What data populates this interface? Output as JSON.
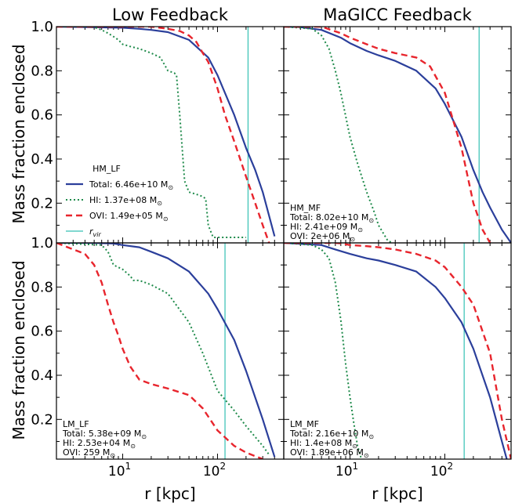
{
  "figure": {
    "col_titles": [
      "Low Feedback",
      "MaGICC Feedback"
    ],
    "ylabel": "Mass fraction enclosed",
    "xlabel": "r [kpc]"
  },
  "chart_data": {
    "type": "line",
    "x_scale": "log",
    "xlim": [
      2,
      500
    ],
    "ylim": [
      0.02,
      1.0
    ],
    "y_ticks": [
      "0.2",
      "0.4",
      "0.6",
      "0.8",
      "1.0"
    ],
    "x_ticks": [
      {
        "base": "10",
        "exp": "1"
      },
      {
        "base": "10",
        "exp": "2"
      }
    ],
    "colors": {
      "total": "#2b3f9b",
      "hi": "#1e8a4a",
      "ovi": "#e8252d",
      "rvir": "#35c1b4"
    },
    "panels": [
      {
        "id": "HM_LF",
        "rvir": 210,
        "legend_layout": "full",
        "legend": {
          "title": "HM_LF",
          "entries": [
            {
              "key": "total",
              "label": "Total: 6.46e+10 M",
              "sub": "⊙"
            },
            {
              "key": "hi",
              "label": "HI: 1.37e+08 M",
              "sub": "⊙"
            },
            {
              "key": "ovi",
              "label": "OVI: 1.49e+05 M",
              "sub": "⊙"
            },
            {
              "key": "rvir",
              "label": "r",
              "sub": "vir"
            }
          ]
        },
        "series": [
          {
            "key": "total",
            "x": [
              2,
              10,
              15,
              20,
              30,
              50,
              80,
              100,
              150,
              200,
              250,
              300,
              400
            ],
            "y": [
              1.0,
              0.995,
              0.99,
              0.985,
              0.975,
              0.94,
              0.86,
              0.78,
              0.6,
              0.45,
              0.35,
              0.25,
              0.05
            ]
          },
          {
            "key": "hi",
            "x": [
              2,
              4,
              5,
              6,
              7,
              8,
              9,
              10,
              12,
              15,
              20,
              25,
              30,
              35,
              37,
              40,
              45,
              50,
              60,
              70,
              75,
              80,
              90,
              100,
              150,
              200
            ],
            "y": [
              1.0,
              1.0,
              0.997,
              0.985,
              0.97,
              0.955,
              0.94,
              0.92,
              0.91,
              0.9,
              0.88,
              0.86,
              0.8,
              0.79,
              0.78,
              0.6,
              0.3,
              0.25,
              0.24,
              0.23,
              0.22,
              0.1,
              0.045,
              0.045,
              0.045,
              0.045
            ]
          },
          {
            "key": "ovi",
            "x": [
              2,
              20,
              30,
              40,
              50,
              60,
              70,
              80,
              100,
              120,
              150,
              200,
              250,
              300,
              350
            ],
            "y": [
              1.0,
              1.0,
              0.99,
              0.98,
              0.96,
              0.93,
              0.88,
              0.84,
              0.72,
              0.6,
              0.48,
              0.32,
              0.2,
              0.1,
              0.02
            ]
          }
        ]
      },
      {
        "id": "HM_MF",
        "rvir": 230,
        "legend_layout": "compact",
        "legend": {
          "title": "HM_MF",
          "entries": [
            {
              "key": "total",
              "label": "Total: 8.02e+10 M",
              "sub": "⊙"
            },
            {
              "key": "hi",
              "label": "HI: 2.41e+09 M",
              "sub": "⊙"
            },
            {
              "key": "ovi",
              "label": "OVI:  2e+06 M",
              "sub": "⊙"
            }
          ]
        },
        "series": [
          {
            "key": "total",
            "x": [
              2,
              3,
              5,
              8,
              10,
              15,
              20,
              30,
              50,
              80,
              100,
              150,
              200,
              250,
              300,
              400,
              500
            ],
            "y": [
              1.0,
              0.998,
              0.985,
              0.95,
              0.925,
              0.89,
              0.87,
              0.845,
              0.8,
              0.72,
              0.65,
              0.5,
              0.35,
              0.25,
              0.18,
              0.08,
              0.02
            ]
          },
          {
            "key": "hi",
            "x": [
              2,
              4,
              5,
              6,
              7,
              8,
              10,
              12,
              15,
              18,
              20,
              25,
              28
            ],
            "y": [
              1.0,
              0.99,
              0.96,
              0.9,
              0.8,
              0.7,
              0.5,
              0.38,
              0.25,
              0.16,
              0.1,
              0.03,
              0.02
            ]
          },
          {
            "key": "ovi",
            "x": [
              2,
              5,
              8,
              10,
              15,
              20,
              30,
              50,
              70,
              100,
              150,
              200,
              250,
              300
            ],
            "y": [
              1.0,
              1.0,
              0.97,
              0.95,
              0.92,
              0.9,
              0.88,
              0.86,
              0.82,
              0.7,
              0.45,
              0.2,
              0.08,
              0.02
            ]
          }
        ]
      },
      {
        "id": "LM_LF",
        "rvir": 120,
        "legend_layout": "compact",
        "legend": {
          "title": "LM_LF",
          "entries": [
            {
              "key": "total",
              "label": "Total: 5.38e+09 M",
              "sub": "⊙"
            },
            {
              "key": "hi",
              "label": "HI: 2.53e+04 M",
              "sub": "⊙"
            },
            {
              "key": "ovi",
              "label": "OVI:   259 M",
              "sub": "⊙"
            }
          ]
        },
        "series": [
          {
            "key": "total",
            "x": [
              2,
              5,
              8,
              10,
              15,
              20,
              30,
              50,
              80,
              100,
              150,
              200,
              300,
              400
            ],
            "y": [
              1.0,
              1.0,
              0.997,
              0.99,
              0.98,
              0.96,
              0.93,
              0.87,
              0.77,
              0.7,
              0.56,
              0.42,
              0.2,
              0.03
            ]
          },
          {
            "key": "hi",
            "x": [
              2,
              6,
              7,
              8,
              10,
              12,
              13,
              15,
              20,
              30,
              50,
              70,
              100,
              150,
              200,
              300,
              350
            ],
            "y": [
              1.0,
              0.99,
              0.96,
              0.9,
              0.88,
              0.85,
              0.83,
              0.83,
              0.81,
              0.77,
              0.64,
              0.5,
              0.33,
              0.24,
              0.17,
              0.08,
              0.04
            ]
          },
          {
            "key": "ovi",
            "x": [
              2,
              4,
              5,
              6,
              7,
              8,
              9,
              10,
              12,
              15,
              20,
              30,
              50,
              70,
              100,
              150,
              200,
              300
            ],
            "y": [
              1.0,
              0.95,
              0.9,
              0.82,
              0.72,
              0.64,
              0.58,
              0.52,
              0.44,
              0.38,
              0.36,
              0.34,
              0.31,
              0.25,
              0.15,
              0.08,
              0.05,
              0.02
            ]
          }
        ]
      },
      {
        "id": "LM_MF",
        "rvir": 160,
        "legend_layout": "compact",
        "legend": {
          "title": "LM_MF",
          "entries": [
            {
              "key": "total",
              "label": "Total: 2.16e+10 M",
              "sub": "⊙"
            },
            {
              "key": "hi",
              "label": "HI: 1.4e+08 M",
              "sub": "⊙"
            },
            {
              "key": "ovi",
              "label": "OVI: 1.89e+06 M",
              "sub": "⊙"
            }
          ]
        },
        "series": [
          {
            "key": "total",
            "x": [
              2,
              5,
              7,
              10,
              15,
              20,
              30,
              50,
              80,
              100,
              150,
              200,
              300,
              400,
              450
            ],
            "y": [
              1.0,
              0.99,
              0.97,
              0.95,
              0.93,
              0.92,
              0.9,
              0.87,
              0.8,
              0.75,
              0.64,
              0.52,
              0.3,
              0.1,
              0.02
            ]
          },
          {
            "key": "hi",
            "x": [
              2,
              4,
              5,
              6,
              7,
              8,
              9,
              10,
              11,
              12,
              13,
              14
            ],
            "y": [
              1.0,
              0.99,
              0.97,
              0.93,
              0.82,
              0.65,
              0.45,
              0.3,
              0.18,
              0.08,
              0.03,
              0.01
            ]
          },
          {
            "key": "ovi",
            "x": [
              2,
              7,
              8,
              10,
              15,
              20,
              30,
              50,
              80,
              100,
              150,
              200,
              300,
              400,
              500
            ],
            "y": [
              1.0,
              1.0,
              0.998,
              0.99,
              0.985,
              0.98,
              0.97,
              0.95,
              0.92,
              0.89,
              0.8,
              0.72,
              0.5,
              0.2,
              0.02
            ]
          }
        ]
      }
    ]
  }
}
